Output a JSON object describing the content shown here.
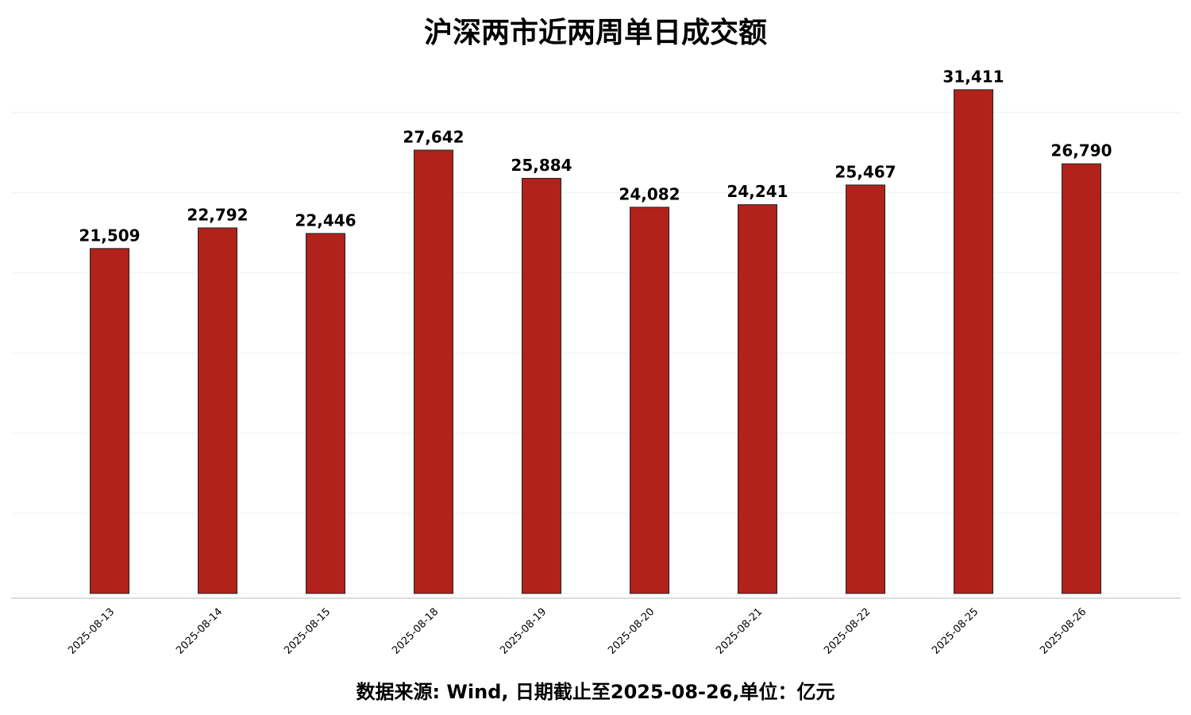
{
  "chart_data": {
    "type": "bar",
    "title": "沪深两市近两周单日成交额",
    "categories": [
      "2025-08-13",
      "2025-08-14",
      "2025-08-15",
      "2025-08-18",
      "2025-08-19",
      "2025-08-20",
      "2025-08-21",
      "2025-08-22",
      "2025-08-25",
      "2025-08-26"
    ],
    "values": [
      21509,
      22792,
      22446,
      27642,
      25884,
      24082,
      24241,
      25467,
      31411,
      26790
    ],
    "value_labels": [
      "21,509",
      "22,792",
      "22,446",
      "27,642",
      "25,884",
      "24,082",
      "24,241",
      "25,467",
      "31,411",
      "26,790"
    ],
    "color": "#b0221a",
    "ylim": [
      0,
      32000
    ],
    "yticks": [
      0,
      5000,
      10000,
      15000,
      20000,
      25000,
      30000
    ],
    "grid": true,
    "caption": "数据来源: Wind, 日期截止至2025-08-26,单位：亿元"
  }
}
